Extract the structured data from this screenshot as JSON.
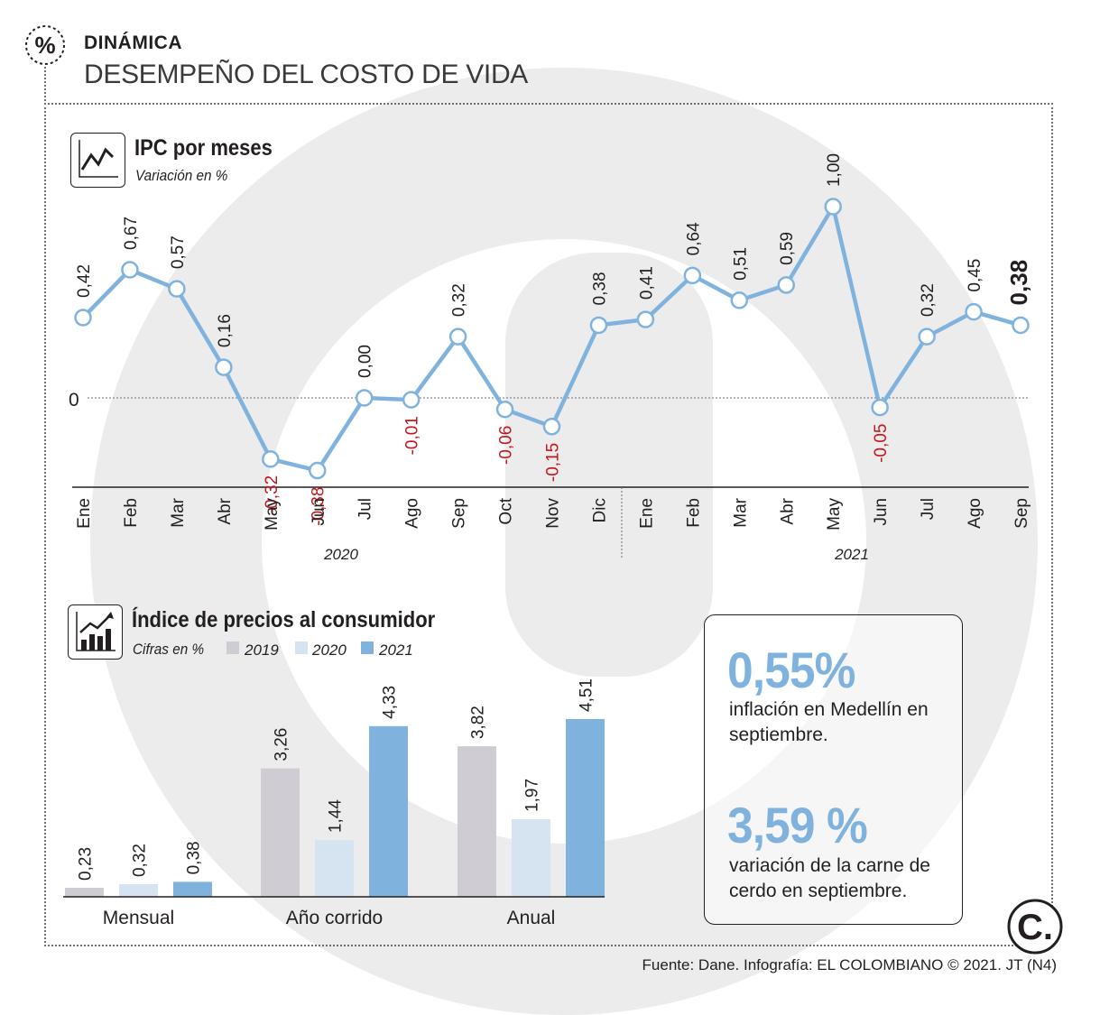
{
  "header": {
    "section_icon": "percent-icon",
    "section_label": "DINÁMICA",
    "title": "DESEMPEÑO DEL COSTO DE VIDA"
  },
  "colors": {
    "line": "#7fb3de",
    "negative": "#c4161c",
    "bar_2019": "#cfcdd3",
    "bar_2020": "#d6e3f1",
    "bar_2021": "#7fb3de",
    "stat": "#7fb3de"
  },
  "line_chart": {
    "title": "IPC por meses",
    "subtitle": "Variación en %",
    "icon": "line-chart-icon",
    "zero_label": "0",
    "year_labels": [
      "2020",
      "2021"
    ]
  },
  "bar_chart": {
    "title": "Índice de precios al consumidor",
    "subtitle": "Cifras en %",
    "icon": "bar-chart-icon",
    "legend": [
      "2019",
      "2020",
      "2021"
    ]
  },
  "chart_data": [
    {
      "type": "line",
      "title": "IPC por meses",
      "ylabel": "Variación en %",
      "x": [
        "Ene",
        "Feb",
        "Mar",
        "Abr",
        "May",
        "Jun",
        "Jul",
        "Ago",
        "Sep",
        "Oct",
        "Nov",
        "Dic",
        "Ene",
        "Feb",
        "Mar",
        "Abr",
        "May",
        "Jun",
        "Jul",
        "Ago",
        "Sep"
      ],
      "groups": [
        {
          "name": "2020",
          "from": 0,
          "to": 11
        },
        {
          "name": "2021",
          "from": 12,
          "to": 20
        }
      ],
      "values": [
        0.42,
        0.67,
        0.57,
        0.16,
        -0.32,
        -0.38,
        0.0,
        -0.01,
        0.32,
        -0.06,
        -0.15,
        0.38,
        0.41,
        0.64,
        0.51,
        0.59,
        1.0,
        -0.05,
        0.32,
        0.45,
        0.38
      ],
      "labels": [
        "0,42",
        "0,67",
        "0,57",
        "0,16",
        "-0,32",
        "-0,38",
        "0,00",
        "-0,01",
        "0,32",
        "-0,06",
        "-0,15",
        "0,38",
        "0,41",
        "0,64",
        "0,51",
        "0,59",
        "1,00",
        "-0,05",
        "0,32",
        "0,45",
        "0,38"
      ],
      "ylim": [
        -0.38,
        1.0
      ]
    },
    {
      "type": "bar",
      "title": "Índice de precios al consumidor",
      "ylabel": "Cifras en %",
      "categories": [
        "Mensual",
        "Año corrido",
        "Anual"
      ],
      "series": [
        {
          "name": "2019",
          "values": [
            0.23,
            3.26,
            3.82
          ],
          "labels": [
            "0,23",
            "3,26",
            "3,82"
          ]
        },
        {
          "name": "2020",
          "values": [
            0.32,
            1.44,
            1.97
          ],
          "labels": [
            "0,32",
            "1,44",
            "1,97"
          ]
        },
        {
          "name": "2021",
          "values": [
            0.38,
            4.33,
            4.51
          ],
          "labels": [
            "0,38",
            "4,33",
            "4,51"
          ]
        }
      ],
      "ylim": [
        0,
        4.51
      ]
    }
  ],
  "stats": [
    {
      "value": "0,55%",
      "description": "inflación en Medellín en septiembre."
    },
    {
      "value": "3,59 %",
      "description": "variación de la carne de cerdo en septiembre."
    }
  ],
  "footer": {
    "source": "Fuente: Dane. Infografía: EL COLOMBIANO © 2021. JT (N4)",
    "logo_text": "C.",
    "logo_icon": "el-colombiano-logo"
  }
}
